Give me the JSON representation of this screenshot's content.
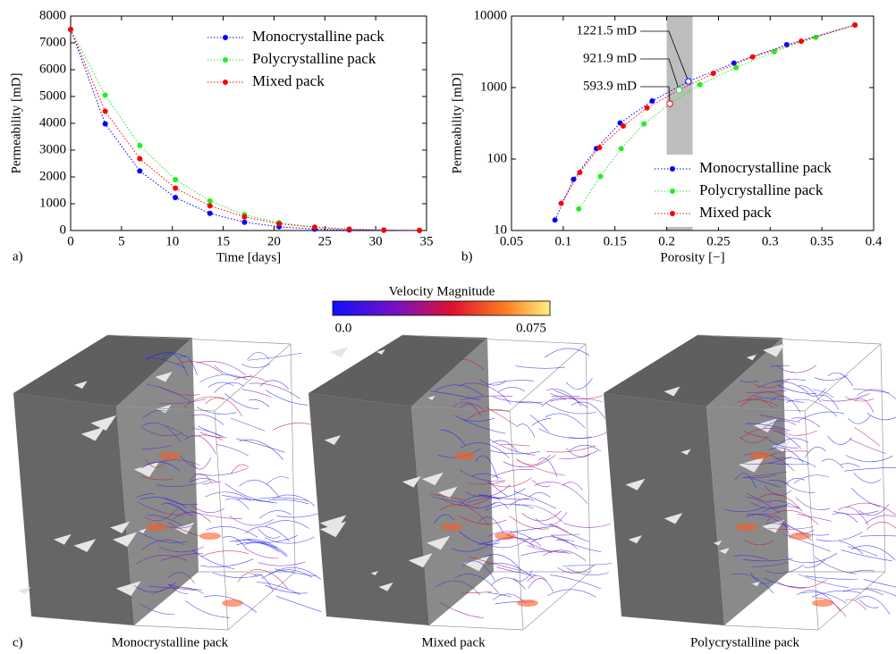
{
  "chart_data": [
    {
      "type": "line",
      "panel_label": "a)",
      "xlabel": "Time [days]",
      "ylabel": "Permeability [mD]",
      "x": [
        0,
        3.4,
        6.8,
        10.3,
        13.7,
        17.1,
        20.5,
        24,
        27.4,
        30.8,
        34.3
      ],
      "series": [
        {
          "name": "Monocrystalline pack",
          "color": "#0000ff",
          "values": [
            7500,
            3980,
            2220,
            1230,
            640,
            310,
            140,
            50,
            20,
            8,
            3
          ]
        },
        {
          "name": "Polycrystalline pack",
          "color": "#22ee22",
          "values": [
            7500,
            5050,
            3170,
            1900,
            1100,
            590,
            290,
            130,
            55,
            20,
            8
          ]
        },
        {
          "name": "Mixed pack",
          "color": "#ff0000",
          "values": [
            7500,
            4450,
            2680,
            1580,
            920,
            510,
            250,
            120,
            50,
            18,
            6
          ]
        }
      ],
      "xlim": [
        0,
        35
      ],
      "xticks": [
        0,
        5,
        10,
        15,
        20,
        25,
        30,
        35
      ],
      "ylim": [
        0,
        8000
      ],
      "yticks": [
        0,
        1000,
        2000,
        3000,
        4000,
        5000,
        6000,
        7000,
        8000
      ],
      "legend": "upper right"
    },
    {
      "type": "line",
      "panel_label": "b)",
      "xlabel": "Porosity [−]",
      "ylabel": "Permeability [mD]",
      "log_y": true,
      "series": [
        {
          "name": "Monocrystalline pack",
          "color": "#0000ff",
          "x": [
            0.092,
            0.11,
            0.132,
            0.155,
            0.186,
            0.221,
            0.265,
            0.316,
            0.382
          ],
          "values": [
            14,
            52,
            140,
            320,
            650,
            1221.5,
            2200,
            3980,
            7500
          ]
        },
        {
          "name": "Polycrystalline pack",
          "color": "#22ee22",
          "x": [
            0.115,
            0.136,
            0.156,
            0.178,
            0.203,
            0.232,
            0.267,
            0.304,
            0.344,
            0.382
          ],
          "values": [
            20,
            57,
            140,
            310,
            593.9,
            1100,
            1900,
            3170,
            5050,
            7500
          ]
        },
        {
          "name": "Mixed pack",
          "color": "#ff0000",
          "x": [
            0.098,
            0.116,
            0.135,
            0.158,
            0.181,
            0.212,
            0.245,
            0.283,
            0.33,
            0.382
          ],
          "values": [
            24,
            65,
            145,
            290,
            520,
            921.9,
            1580,
            2680,
            4450,
            7500
          ]
        }
      ],
      "annotations": [
        {
          "text": "1221.5 mD",
          "x": 0.221,
          "y": 1221.5
        },
        {
          "text": "921.9 mD",
          "x": 0.212,
          "y": 921.9
        },
        {
          "text": "593.9 mD",
          "x": 0.203,
          "y": 593.9
        }
      ],
      "shaded_band": [
        0.2,
        0.225
      ],
      "xlim": [
        0.05,
        0.4
      ],
      "xticks": [
        0.05,
        0.1,
        0.15,
        0.2,
        0.25,
        0.3,
        0.35,
        0.4
      ],
      "ylim": [
        10,
        10000
      ],
      "yticks": [
        10,
        100,
        1000,
        10000
      ],
      "legend": "lower right"
    }
  ],
  "colorbar": {
    "title": "Velocity Magnitude",
    "min": {
      "value": 0,
      "label": "0.0"
    },
    "max": 0.075
  },
  "panel_c": {
    "label": "c)",
    "captions": [
      "Monocrystalline pack",
      "Mixed pack",
      "Polycrystalline pack"
    ]
  }
}
